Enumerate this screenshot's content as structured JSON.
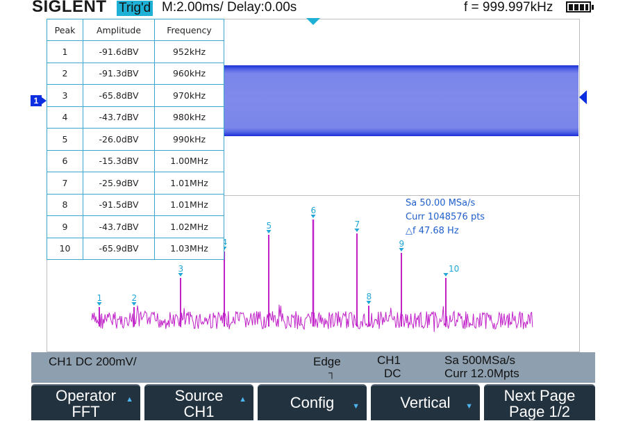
{
  "header": {
    "brand": "SIGLENT",
    "trigger_status": "Trig'd",
    "timebase": "M:2.00ms/ Delay:0.00s",
    "frequency": "f = 999.997kHz"
  },
  "channel_marker": "1",
  "peak_table": {
    "headers": [
      "Peak",
      "Amplitude",
      "Frequency"
    ],
    "rows": [
      [
        "1",
        "-91.6dBV",
        "952kHz"
      ],
      [
        "2",
        "-91.3dBV",
        "960kHz"
      ],
      [
        "3",
        "-65.8dBV",
        "970kHz"
      ],
      [
        "4",
        "-43.7dBV",
        "980kHz"
      ],
      [
        "5",
        "-26.0dBV",
        "990kHz"
      ],
      [
        "6",
        "-15.3dBV",
        "1.00MHz"
      ],
      [
        "7",
        "-25.9dBV",
        "1.01MHz"
      ],
      [
        "8",
        "-91.5dBV",
        "1.01MHz"
      ],
      [
        "9",
        "-43.7dBV",
        "1.02MHz"
      ],
      [
        "10",
        "-65.9dBV",
        "1.03MHz"
      ]
    ]
  },
  "fft_info": {
    "sample_rate": "Sa 50.00 MSa/s",
    "curr_points": "Curr 1048576 pts",
    "delta_f": "△f 47.68 Hz"
  },
  "spectrum_peaks": [
    {
      "label": "1"
    },
    {
      "label": "2"
    },
    {
      "label": "3"
    },
    {
      "label": "4"
    },
    {
      "label": "5"
    },
    {
      "label": "6"
    },
    {
      "label": "7"
    },
    {
      "label": "8"
    },
    {
      "label": "9"
    },
    {
      "label": "10"
    }
  ],
  "status_bar": {
    "ch1_setting": "CH1 DC 200mV/",
    "trigger_type": "Edge",
    "edge_icon": "̲╱",
    "trigger_source": "CH1",
    "trigger_coupling": "DC",
    "sample_rate": "Sa 500MSa/s",
    "curr_points": "Curr 12.0Mpts"
  },
  "softkeys": [
    {
      "line1": "Operator",
      "line2": "FFT",
      "arrow": "up"
    },
    {
      "line1": "Source",
      "line2": "CH1",
      "arrow": "up"
    },
    {
      "line1": "Config",
      "line2": "",
      "arrow": "down"
    },
    {
      "line1": "Vertical",
      "line2": "",
      "arrow": "down"
    },
    {
      "line1": "Next Page",
      "line2": "Page 1/2",
      "arrow": ""
    }
  ],
  "colors": {
    "waveform": "#7f8aeb",
    "spectrum": "#c020c8",
    "marker": "#1fa6d6",
    "info_text": "#1f5fcc"
  }
}
